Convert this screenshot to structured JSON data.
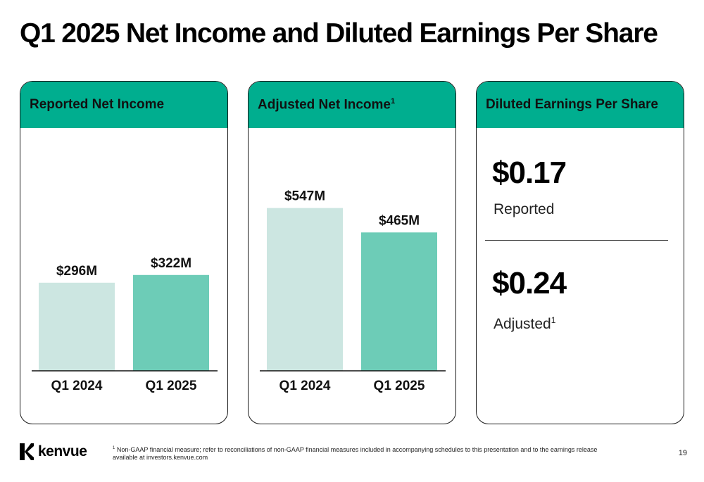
{
  "title": "Q1 2025 Net Income and Diluted Earnings Per Share",
  "colors": {
    "header": "#00ae8f",
    "bar_prior": "#cce6e1",
    "bar_current": "#6dccb7"
  },
  "cards": {
    "reported": {
      "header": "Reported Net Income"
    },
    "adjusted": {
      "header": "Adjusted Net Income",
      "header_sup": "1"
    },
    "eps": {
      "header": "Diluted Earnings Per Share"
    }
  },
  "chart_data": [
    {
      "type": "bar",
      "title": "Reported Net Income",
      "categories": [
        "Q1 2024",
        "Q1 2025"
      ],
      "values": [
        296,
        322
      ],
      "value_labels": [
        "$296M",
        "$322M"
      ],
      "unit": "$M"
    },
    {
      "type": "bar",
      "title": "Adjusted Net Income",
      "categories": [
        "Q1 2024",
        "Q1 2025"
      ],
      "values": [
        547,
        465
      ],
      "value_labels": [
        "$547M",
        "$465M"
      ],
      "unit": "$M"
    }
  ],
  "eps": {
    "reported_value": "$0.17",
    "reported_label": "Reported",
    "adjusted_value": "$0.24",
    "adjusted_label": "Adjusted",
    "adjusted_sup": "1"
  },
  "footer": {
    "logo_text": "kenvue",
    "footnote_sup": "1",
    "footnote": "Non-GAAP financial measure; refer to reconciliations of non-GAAP financial measures included in accompanying schedules to this presentation and to the earnings release available at investors.kenvue.com",
    "page_number": "19"
  }
}
